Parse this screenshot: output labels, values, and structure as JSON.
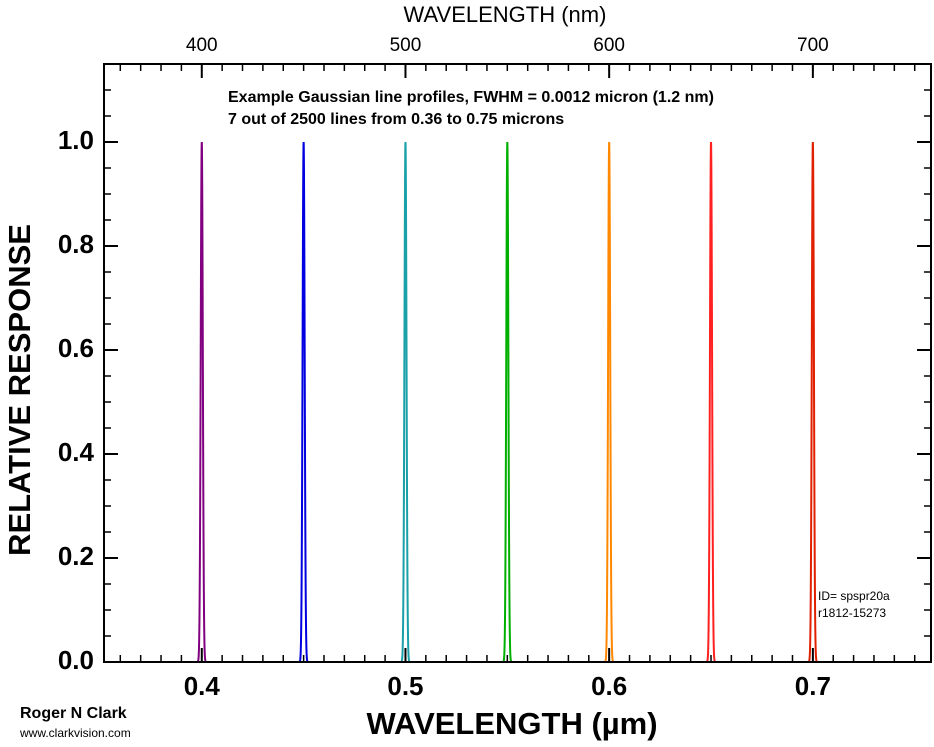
{
  "chart_data": {
    "type": "gaussian-lines",
    "top_axis_label": "WAVELENGTH (nm)",
    "ylabel": "RELATIVE RESPONSE",
    "xlabel": "WAVELENGTH (µm)",
    "annotation": [
      "Example Gaussian line profiles, FWHM = 0.0012 micron (1.2 nm)",
      "7 out of 2500 lines from 0.36 to 0.75 microns"
    ],
    "id_text": [
      "ID= spspr20a",
      "r1812-15273"
    ],
    "credit": [
      "Roger N Clark",
      "www.clarkvision.com"
    ],
    "fwhm": 0.0012,
    "peak": 1.0,
    "series": [
      {
        "color": "#800080",
        "center": 0.4
      },
      {
        "color": "#0000e0",
        "center": 0.45
      },
      {
        "color": "#1aa0a8",
        "center": 0.5
      },
      {
        "color": "#00b000",
        "center": 0.55
      },
      {
        "color": "#ff8800",
        "center": 0.6
      },
      {
        "color": "#ff2020",
        "center": 0.65
      },
      {
        "color": "#e02000",
        "center": 0.7
      }
    ],
    "xlim": [
      0.352,
      0.758
    ],
    "xticks": [
      0.4,
      0.5,
      0.6,
      0.7
    ],
    "x_minor_step": 0.01,
    "x2lim": [
      352,
      758
    ],
    "x2ticks": [
      400,
      500,
      600,
      700
    ],
    "x2_minor_step": 10,
    "ylim": [
      0,
      1.15
    ],
    "yticks": [
      {
        "value": 0,
        "label": "0.0"
      },
      {
        "value": 0.2,
        "label": "0.2"
      },
      {
        "value": 0.4,
        "label": "0.4"
      },
      {
        "value": 0.6,
        "label": "0.6"
      },
      {
        "value": 0.8,
        "label": "0.8"
      },
      {
        "value": 1.0,
        "label": "1.0"
      }
    ],
    "y_minor_step": 0.05
  }
}
